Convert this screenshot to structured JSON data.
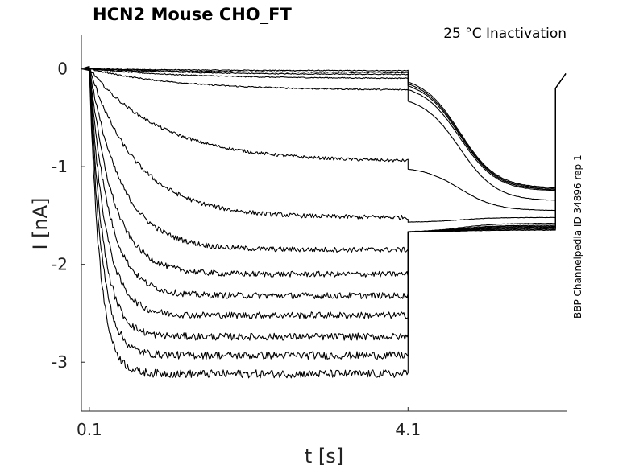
{
  "chart_data": {
    "type": "line",
    "title": "HCN2  Mouse  CHO_FT",
    "annotation": "25 °C  Inactivation",
    "side_label": "BBP Channelpedia ID 34896 rep 1",
    "xlabel": "t [s]",
    "ylabel": "I [nA]",
    "x_ticks": [
      {
        "value": 0.1,
        "label": "0.1"
      },
      {
        "value": 4.1,
        "label": "4.1"
      }
    ],
    "y_ticks": [
      {
        "value": 0,
        "label": "0"
      },
      {
        "value": -1,
        "label": "-1"
      },
      {
        "value": -2,
        "label": "-2"
      },
      {
        "value": -3,
        "label": "-3"
      }
    ],
    "xlim": [
      0.0,
      6.1
    ],
    "ylim": [
      -3.5,
      0.35
    ],
    "grid": false,
    "line_color": "#000000",
    "traces": [
      {
        "plateau": -0.02,
        "tau": 1.5,
        "tail": -1.22
      },
      {
        "plateau": -0.04,
        "tau": 1.4,
        "tail": -1.23
      },
      {
        "plateau": -0.06,
        "tau": 1.3,
        "tail": -1.24
      },
      {
        "plateau": -0.1,
        "tau": 1.2,
        "tail": -1.25
      },
      {
        "plateau": -0.22,
        "tau": 1.1,
        "tail": -1.35
      },
      {
        "plateau": -0.95,
        "tau": 0.9,
        "tail": -1.45
      },
      {
        "plateau": -1.52,
        "tau": 0.6,
        "tail": -1.52
      },
      {
        "plateau": -1.85,
        "tau": 0.4,
        "tail": -1.58
      },
      {
        "plateau": -2.1,
        "tau": 0.3,
        "tail": -1.6
      },
      {
        "plateau": -2.32,
        "tau": 0.25,
        "tail": -1.61
      },
      {
        "plateau": -2.52,
        "tau": 0.2,
        "tail": -1.62
      },
      {
        "plateau": -2.74,
        "tau": 0.17,
        "tail": -1.63
      },
      {
        "plateau": -2.93,
        "tau": 0.15,
        "tail": -1.64
      },
      {
        "plateau": -3.12,
        "tau": 0.13,
        "tail": -1.65
      }
    ]
  }
}
